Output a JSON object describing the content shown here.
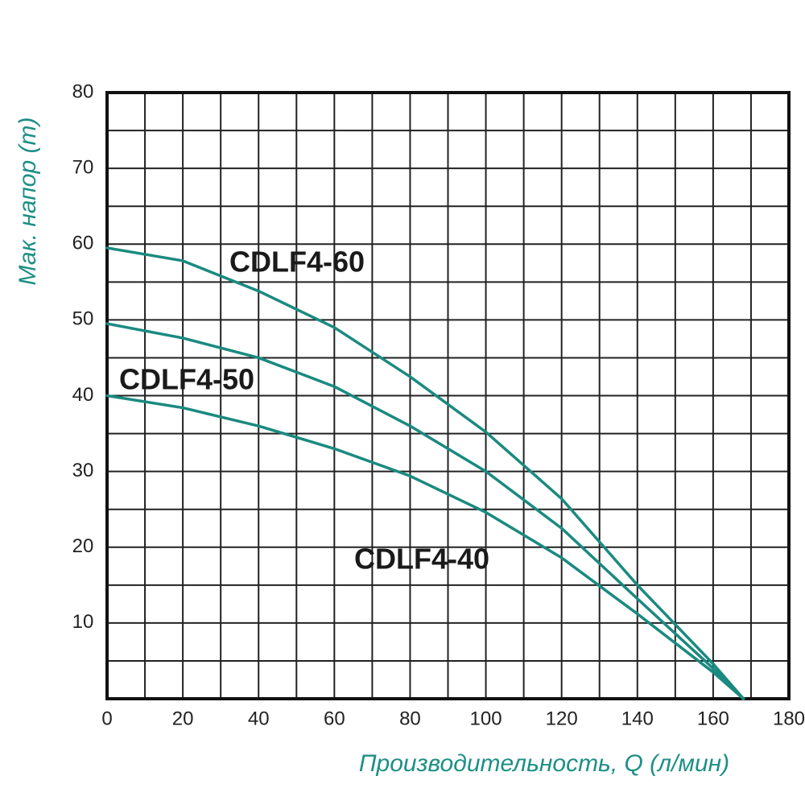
{
  "chart_data": {
    "type": "line",
    "x_label": "Производительность, Q (л/мин)",
    "y_label": "Мак. напор (m)",
    "x": [
      0,
      20,
      40,
      60,
      80,
      100,
      120,
      140,
      160,
      168
    ],
    "series": [
      {
        "name": "CDLF4-60",
        "color": "#1a8a80",
        "values": [
          59.5,
          57.8,
          53.8,
          49.0,
          42.5,
          35.2,
          26.4,
          15.0,
          4.6,
          0
        ]
      },
      {
        "name": "CDLF4-50",
        "color": "#1a8a80",
        "values": [
          49.5,
          47.6,
          45.0,
          41.2,
          36.0,
          30.0,
          22.5,
          13.2,
          4.0,
          0
        ]
      },
      {
        "name": "CDLF4-40",
        "color": "#1a8a80",
        "values": [
          40.0,
          38.4,
          36.0,
          33.0,
          29.4,
          24.6,
          18.6,
          11.2,
          3.5,
          0
        ]
      }
    ],
    "xlim": [
      0,
      180
    ],
    "ylim": [
      0,
      80
    ],
    "xticks": [
      0,
      20,
      40,
      60,
      80,
      100,
      120,
      140,
      160,
      180
    ],
    "yticks": [
      10,
      20,
      30,
      40,
      50,
      60,
      70,
      80
    ],
    "xgrid": [
      10,
      20,
      30,
      40,
      50,
      60,
      70,
      80,
      90,
      100,
      110,
      120,
      130,
      140,
      150,
      160,
      170
    ],
    "ygrid": [
      5,
      10,
      15,
      20,
      25,
      30,
      35,
      40,
      45,
      50,
      55,
      60,
      65,
      70,
      75
    ],
    "grid": true
  }
}
